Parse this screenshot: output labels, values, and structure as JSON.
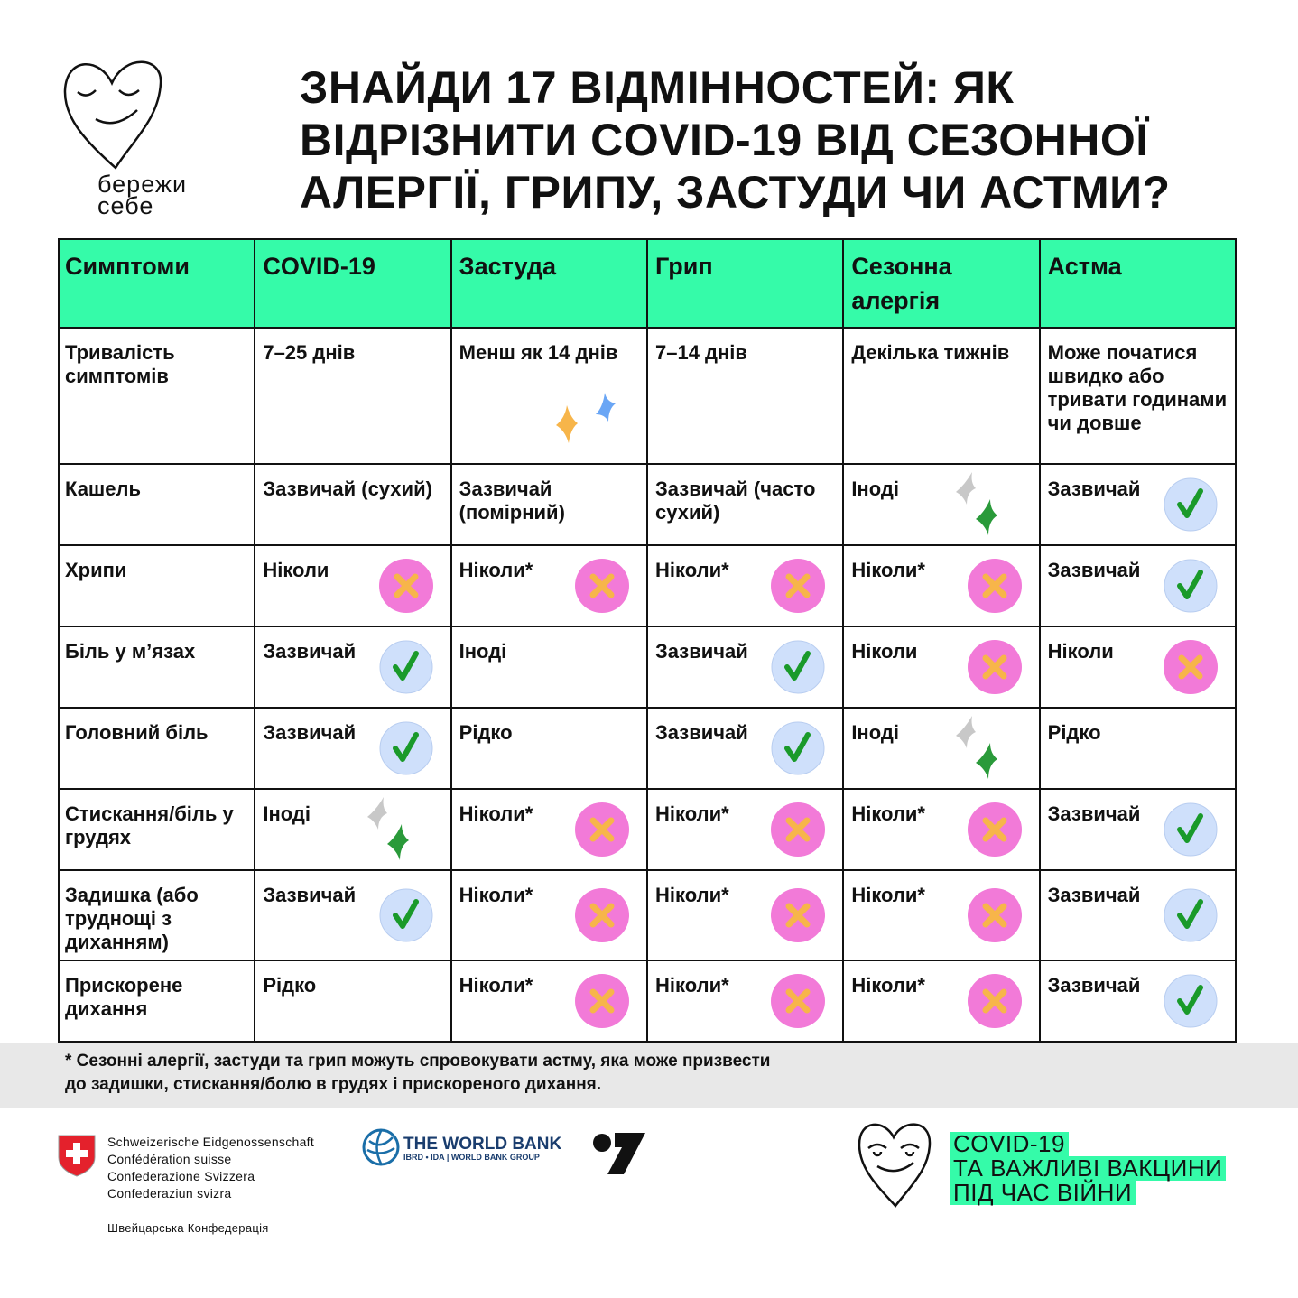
{
  "logo": {
    "lines": [
      "бережи",
      "себе"
    ]
  },
  "title": {
    "lines": [
      "ЗНАЙДИ 17 ВІДМІННОСТЕЙ: ЯК",
      "ВІДРІЗНИТИ COVID-19 ВІД СЕЗОННОЇ",
      "АЛЕРГІЇ, ГРИПУ, ЗАСТУДИ ЧИ АСТМИ?"
    ]
  },
  "table": {
    "header": [
      "Симптоми",
      "COVID-19",
      "Застуда",
      "Грип",
      "Сезонна алергія",
      "Астма"
    ],
    "rows": [
      [
        "Тривалість симптомів",
        "7–25 днів",
        "Менш як 14 днів",
        "7–14 днів",
        "Декілька тижнів",
        "Може початися швидко або тривати годинами чи довше"
      ],
      [
        "Кашель",
        "Зазвичай (сухий)",
        "Зазвичай (помірний)",
        "Зазвичай (часто сухий)",
        "Іноді",
        "Зазвичай"
      ],
      [
        "Хрипи",
        "Ніколи",
        "Ніколи*",
        "Ніколи*",
        "Ніколи*",
        "Зазвичай"
      ],
      [
        "Біль у м’язах",
        "Зазвичай",
        "Іноді",
        "Зазвичай",
        "Ніколи",
        "Ніколи"
      ],
      [
        "Головний біль",
        "Зазвичай",
        "Рідко",
        "Зазвичай",
        "Іноді",
        "Рідко"
      ],
      [
        "Стискання/біль у грудях",
        "Іноді",
        "Ніколи*",
        "Ніколи*",
        "Ніколи*",
        "Зазвичай"
      ],
      [
        "Задишка (або труднощі з диханням)",
        "Зазвичай",
        "Ніколи*",
        "Ніколи*",
        "Ніколи*",
        "Зазвичай"
      ],
      [
        "Прискорене дихання",
        "Рідко",
        "Ніколи*",
        "Ніколи*",
        "Ніколи*",
        "Зазвичай"
      ]
    ]
  },
  "footnote": {
    "lines": [
      "* Сезонні алергії, застуди та грип можуть спровокувати астму, яка може призвести",
      "до задишки, стискання/болю в грудях і прискореного дихання."
    ]
  },
  "partners": {
    "swiss": {
      "lines": [
        "Schweizerische Eidgenossenschaft",
        "Confédération suisse",
        "Confederazione Svizzera",
        "Confederaziun svizra"
      ],
      "caption": "Швейцарська Конфедерація"
    },
    "world_bank": {
      "name": "THE WORLD BANK",
      "subtitle": "IBRD • IDA | WORLD BANK GROUP"
    }
  },
  "campaign": {
    "lines": [
      "COVID-19",
      "ТА ВАЖЛИВІ ВАКЦИНИ",
      "ПІД ЧАС ВІЙНИ"
    ]
  }
}
